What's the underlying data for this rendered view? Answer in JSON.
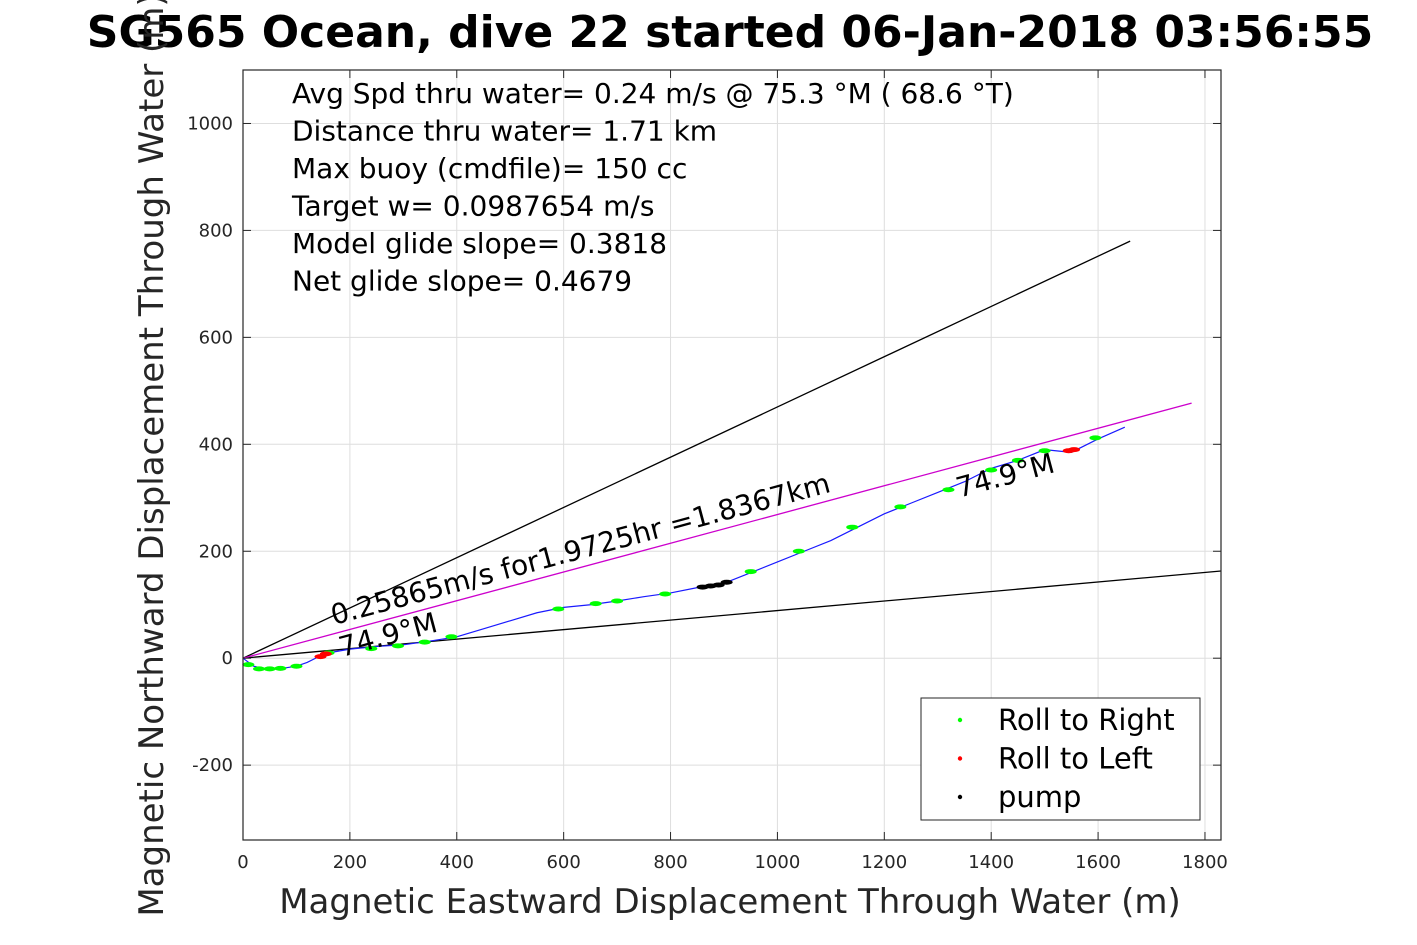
{
  "chart_data": {
    "type": "line",
    "title": "SG565 Ocean, dive 22 started 06-Jan-2018 03:56:55",
    "xlabel": "Magnetic Eastward Displacement Through Water (m)",
    "ylabel": "Magnetic Northward Displacement Through Water (m)",
    "xlim": [
      0,
      1830
    ],
    "ylim": [
      -340,
      1100
    ],
    "xticks": [
      0,
      200,
      400,
      600,
      800,
      1000,
      1200,
      1400,
      1600,
      1800
    ],
    "yticks": [
      -200,
      0,
      200,
      400,
      600,
      800,
      1000
    ],
    "grid": true,
    "legend": {
      "placement": "bottom-right",
      "entries": [
        {
          "label": "Roll to Right",
          "color": "#00ff00"
        },
        {
          "label": "Roll to Left",
          "color": "#ff0000"
        },
        {
          "label": "pump",
          "color": "#000000"
        }
      ]
    },
    "stats_text": [
      "Avg Spd thru water=  0.24 m/s @  75.3 °M ( 68.6 °T)",
      "Distance thru water=  1.71 km",
      "Max buoy (cmdfile)= 150 cc",
      "Target w= 0.0987654 m/s",
      "Model glide slope= 0.3818",
      "Net glide slope= 0.4679"
    ],
    "annotations": [
      {
        "text": "0.25865m/s for1.9725hr =1.8367km",
        "x": 170,
        "y": 62,
        "angle_deg": 15
      },
      {
        "text": "74.9°M",
        "x": 185,
        "y": 2,
        "angle_deg": 15
      },
      {
        "text": "74.9°M",
        "x": 1340,
        "y": 300,
        "angle_deg": 15
      }
    ],
    "series": [
      {
        "style": "reference",
        "color": "#000000",
        "x": [
          0,
          1660
        ],
        "y": [
          0,
          780
        ]
      },
      {
        "style": "reference",
        "color": "#000000",
        "x": [
          0,
          1830
        ],
        "y": [
          0,
          163
        ]
      },
      {
        "style": "reference",
        "color": "#cc00cc",
        "x": [
          0,
          1775
        ],
        "y": [
          0,
          477
        ]
      },
      {
        "style": "track",
        "color": "#1a1aff",
        "x": [
          0,
          20,
          40,
          60,
          80,
          100,
          120,
          140,
          160,
          200,
          250,
          300,
          350,
          400,
          450,
          500,
          550,
          600,
          650,
          700,
          750,
          800,
          850,
          880,
          900,
          950,
          1000,
          1050,
          1100,
          1150,
          1200,
          1250,
          1300,
          1350,
          1400,
          1450,
          1500,
          1550,
          1600,
          1650
        ],
        "y": [
          0,
          -15,
          -20,
          -20,
          -18,
          -15,
          -8,
          2,
          10,
          17,
          22,
          25,
          32,
          40,
          55,
          70,
          85,
          95,
          100,
          107,
          115,
          122,
          132,
          136,
          140,
          160,
          180,
          200,
          220,
          245,
          270,
          290,
          310,
          330,
          355,
          370,
          390,
          385,
          410,
          432
        ]
      }
    ],
    "markers": {
      "roll_right": {
        "color": "#00ff00",
        "x": [
          10,
          30,
          50,
          70,
          100,
          160,
          240,
          290,
          340,
          390,
          590,
          660,
          700,
          790,
          950,
          1040,
          1140,
          1230,
          1320,
          1400,
          1450,
          1500,
          1595
        ],
        "y": [
          -12,
          -20,
          -20,
          -19,
          -15,
          10,
          18,
          23,
          30,
          40,
          92,
          102,
          107,
          120,
          162,
          200,
          245,
          283,
          315,
          352,
          370,
          388,
          412
        ]
      },
      "roll_left": {
        "color": "#ff0000",
        "x": [
          145,
          155,
          1545,
          1555
        ],
        "y": [
          3,
          8,
          388,
          390
        ]
      },
      "pump": {
        "color": "#000000",
        "x": [
          860,
          875,
          890,
          905
        ],
        "y": [
          133,
          135,
          137,
          142
        ]
      }
    }
  }
}
